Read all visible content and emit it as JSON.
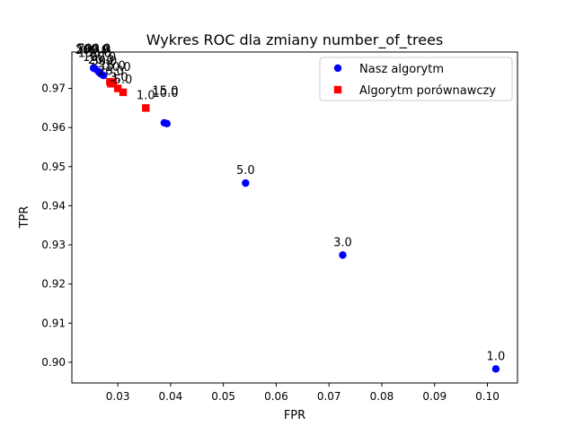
{
  "chart_data": {
    "type": "scatter",
    "title": "Wykres ROC dla zmiany number_of_trees",
    "xlabel": "FPR",
    "ylabel": "TPR",
    "xlim": [
      0.0213,
      0.1057
    ],
    "ylim": [
      0.8947,
      0.9793
    ],
    "xticks": [
      0.03,
      0.04,
      0.05,
      0.06,
      0.07,
      0.08,
      0.09,
      0.1
    ],
    "xtick_labels": [
      "0.03",
      "0.04",
      "0.05",
      "0.06",
      "0.07",
      "0.08",
      "0.09",
      "0.10"
    ],
    "yticks": [
      0.9,
      0.91,
      0.92,
      0.93,
      0.94,
      0.95,
      0.96,
      0.97
    ],
    "ytick_labels": [
      "0.90",
      "0.91",
      "0.92",
      "0.93",
      "0.94",
      "0.95",
      "0.96",
      "0.97"
    ],
    "grid": false,
    "legend_position": "top-right",
    "series": [
      {
        "name": "Nasz algorytm",
        "marker": "circle",
        "color": "#0000ff",
        "points": [
          {
            "x": 0.1016,
            "y": 0.8983,
            "label": "1.0"
          },
          {
            "x": 0.0726,
            "y": 0.9274,
            "label": "3.0"
          },
          {
            "x": 0.0542,
            "y": 0.9458,
            "label": "5.0"
          },
          {
            "x": 0.0388,
            "y": 0.9612,
            "label": ""
          },
          {
            "x": 0.0393,
            "y": 0.961,
            "label": ""
          },
          {
            "x": 0.0268,
            "y": 0.9737,
            "label": ""
          },
          {
            "x": 0.0273,
            "y": 0.9733,
            "label": ""
          },
          {
            "x": 0.0264,
            "y": 0.9742,
            "label": ""
          },
          {
            "x": 0.0254,
            "y": 0.9752,
            "label": ""
          },
          {
            "x": 0.0257,
            "y": 0.975,
            "label": ""
          }
        ]
      },
      {
        "name": "Algorytm porównawczy",
        "marker": "square",
        "color": "#ff0000",
        "points": [
          {
            "x": 0.0353,
            "y": 0.965,
            "label": "1.0"
          },
          {
            "x": 0.031,
            "y": 0.969,
            "label": ""
          },
          {
            "x": 0.03,
            "y": 0.97,
            "label": ""
          },
          {
            "x": 0.0287,
            "y": 0.9712,
            "label": ""
          },
          {
            "x": 0.0285,
            "y": 0.9717,
            "label": ""
          },
          {
            "x": 0.0291,
            "y": 0.9716,
            "label": ""
          }
        ]
      }
    ],
    "annotations": [
      {
        "text": "1.0",
        "x": 0.1016,
        "y": 0.8983,
        "color": "#000000"
      },
      {
        "text": "3.0",
        "x": 0.0726,
        "y": 0.9274,
        "color": "#000000"
      },
      {
        "text": "5.0",
        "x": 0.0542,
        "y": 0.9458,
        "color": "#000000"
      },
      {
        "text": "1.0",
        "x": 0.0353,
        "y": 0.965,
        "color": "#000000"
      },
      {
        "text": "15.0",
        "x": 0.039,
        "y": 0.9661,
        "color": "#000000"
      },
      {
        "text": "10.0",
        "x": 0.039,
        "y": 0.9655,
        "color": "#000000"
      },
      {
        "text": "5.0",
        "x": 0.031,
        "y": 0.969,
        "color": "#000000"
      },
      {
        "text": "3.0",
        "x": 0.0302,
        "y": 0.9695,
        "color": "#000000"
      },
      {
        "text": "20.0",
        "x": 0.0287,
        "y": 0.9712,
        "color": "#000000"
      },
      {
        "text": "10.0",
        "x": 0.03,
        "y": 0.9722,
        "color": "#000000"
      },
      {
        "text": "15.0",
        "x": 0.029,
        "y": 0.9725,
        "color": "#000000"
      },
      {
        "text": "50.0",
        "x": 0.0274,
        "y": 0.9737,
        "color": "#000000"
      },
      {
        "text": "20.0",
        "x": 0.0268,
        "y": 0.974,
        "color": "#000000"
      },
      {
        "text": "100.0",
        "x": 0.0265,
        "y": 0.9747,
        "color": "#000000"
      },
      {
        "text": "150.0",
        "x": 0.0256,
        "y": 0.9757,
        "color": "#000000"
      },
      {
        "text": "200.0",
        "x": 0.0251,
        "y": 0.9766,
        "color": "#000000"
      },
      {
        "text": "500.0",
        "x": 0.0253,
        "y": 0.9768,
        "color": "#000000"
      },
      {
        "text": "700.0",
        "x": 0.0255,
        "y": 0.9769,
        "color": "#000000"
      }
    ]
  }
}
